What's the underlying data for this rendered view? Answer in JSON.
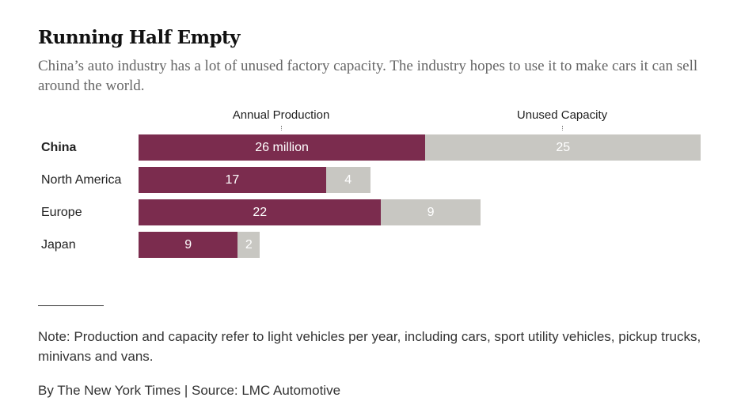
{
  "title": "Running Half Empty",
  "subtitle": "China’s auto industry has a lot of unused factory capacity. The industry hopes to use it to make cars it can sell around the world.",
  "note": "Note: Production and capacity refer to light vehicles per year, including cars, sport utility vehicles, pickup trucks, minivans and vans.",
  "credit": "By The New York Times | Source: LMC Automotive",
  "chart_data": {
    "type": "bar",
    "orientation": "horizontal",
    "stacked": true,
    "unit": "million",
    "column_headers": [
      "Annual Production",
      "Unused Capacity"
    ],
    "categories": [
      "China",
      "North America",
      "Europe",
      "Japan"
    ],
    "series": [
      {
        "name": "Annual Production",
        "values": [
          26,
          17,
          22,
          9
        ],
        "labels": [
          "26 million",
          "17",
          "22",
          "9"
        ],
        "color": "#7b2c4e"
      },
      {
        "name": "Unused Capacity",
        "values": [
          25,
          4,
          9,
          2
        ],
        "labels": [
          "25",
          "4",
          "9",
          "2"
        ],
        "color": "#c8c7c2"
      }
    ]
  }
}
